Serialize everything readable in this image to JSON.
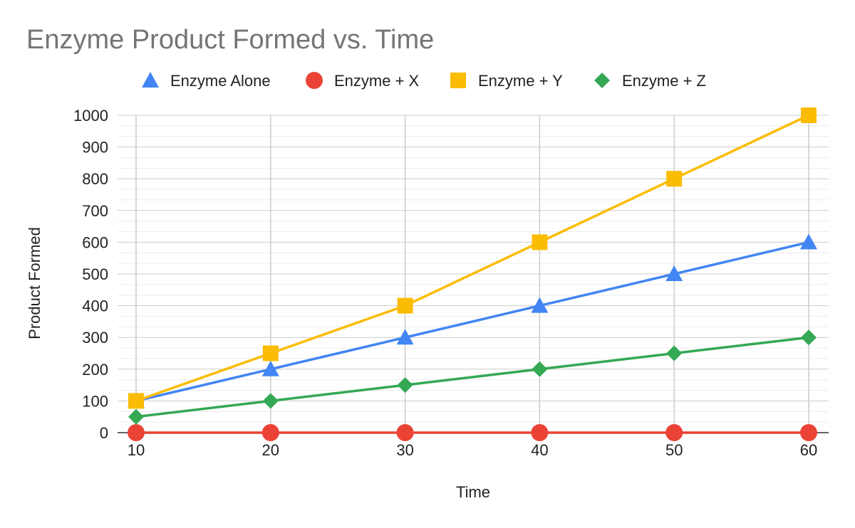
{
  "chart_data": {
    "type": "line",
    "title": "Enzyme Product Formed vs. Time",
    "xlabel": "Time",
    "ylabel": "Product Formed",
    "x": [
      10,
      20,
      30,
      40,
      50,
      60
    ],
    "xlim": [
      10,
      60
    ],
    "ylim": [
      0,
      1000
    ],
    "y_ticks": [
      0,
      100,
      200,
      300,
      400,
      500,
      600,
      700,
      800,
      900,
      1000
    ],
    "x_ticks": [
      10,
      20,
      30,
      40,
      50,
      60
    ],
    "grid": true,
    "legend_position": "top",
    "series": [
      {
        "name": "Enzyme Alone",
        "color": "#4285F4",
        "marker": "triangle",
        "values": [
          100,
          200,
          300,
          400,
          500,
          600
        ]
      },
      {
        "name": "Enzyme + X",
        "color": "#EA4335",
        "marker": "circle",
        "values": [
          0,
          0,
          0,
          0,
          0,
          0
        ]
      },
      {
        "name": "Enzyme + Y",
        "color": "#FBBC04",
        "marker": "square",
        "values": [
          100,
          250,
          400,
          600,
          800,
          1000
        ]
      },
      {
        "name": "Enzyme + Z",
        "color": "#34A853",
        "marker": "diamond",
        "values": [
          50,
          100,
          150,
          200,
          250,
          300
        ]
      }
    ]
  }
}
